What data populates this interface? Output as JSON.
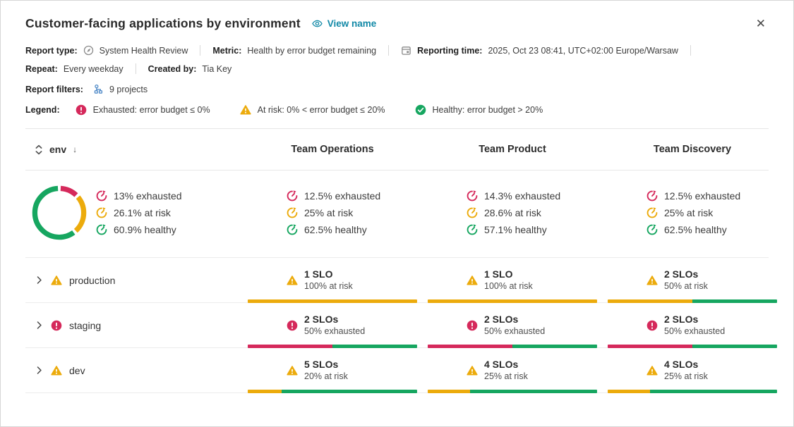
{
  "colors": {
    "exhausted": "#d5295b",
    "at_risk": "#ecab0c",
    "healthy": "#16a660",
    "link": "#1289a7",
    "projects_icon": "#4b87c6",
    "muted_icon": "#8a8a8a"
  },
  "icons": [
    "eye-icon",
    "close-icon",
    "report-type-icon",
    "calendar-icon",
    "projects-icon",
    "exhausted-icon",
    "at-risk-icon",
    "healthy-icon",
    "gauge-icon",
    "sort-icon",
    "chevron-right-icon"
  ],
  "header": {
    "title": "Customer-facing applications by environment",
    "view_name_label": "View name",
    "close_label": "✕"
  },
  "meta": {
    "report_type_label": "Report type:",
    "report_type_value": "System Health Review",
    "metric_label": "Metric:",
    "metric_value": "Health by error budget remaining",
    "reporting_time_label": "Reporting time:",
    "reporting_time_value": "2025, Oct 23 08:41, UTC+02:00 Europe/Warsaw",
    "repeat_label": "Repeat:",
    "repeat_value": "Every weekday",
    "created_by_label": "Created by:",
    "created_by_value": "Tia Key",
    "report_filters_label": "Report filters:",
    "report_filters_value": "9 projects"
  },
  "legend": {
    "label": "Legend:",
    "items": [
      {
        "status": "exhausted",
        "text": "Exhausted: error budget ≤ 0%"
      },
      {
        "status": "at_risk",
        "text": "At risk: 0% < error budget ≤ 20%"
      },
      {
        "status": "healthy",
        "text": "Healthy: error budget > 20%"
      }
    ]
  },
  "chart_data": {
    "type": "pie",
    "donut": true,
    "labels": [
      "exhausted",
      "at risk",
      "healthy"
    ],
    "values": [
      13,
      26.1,
      60.9
    ],
    "colors": [
      "#d5295b",
      "#ecab0c",
      "#16a660"
    ]
  },
  "table": {
    "env_header": "env",
    "sort_direction": "↓",
    "columns": [
      "Team Operations",
      "Team Product",
      "Team Discovery"
    ],
    "summary": {
      "overall": [
        {
          "status": "exhausted",
          "text": "13% exhausted"
        },
        {
          "status": "at_risk",
          "text": "26.1% at risk"
        },
        {
          "status": "healthy",
          "text": "60.9% healthy"
        }
      ],
      "teams": [
        [
          {
            "status": "exhausted",
            "text": "12.5% exhausted"
          },
          {
            "status": "at_risk",
            "text": "25% at risk"
          },
          {
            "status": "healthy",
            "text": "62.5% healthy"
          }
        ],
        [
          {
            "status": "exhausted",
            "text": "14.3% exhausted"
          },
          {
            "status": "at_risk",
            "text": "28.6% at risk"
          },
          {
            "status": "healthy",
            "text": "57.1% healthy"
          }
        ],
        [
          {
            "status": "exhausted",
            "text": "12.5% exhausted"
          },
          {
            "status": "at_risk",
            "text": "25% at risk"
          },
          {
            "status": "healthy",
            "text": "62.5% healthy"
          }
        ]
      ]
    },
    "rows": [
      {
        "name": "production",
        "status": "at_risk",
        "cells": [
          {
            "status": "at_risk",
            "count": "1 SLO",
            "detail": "100% at risk",
            "bar": {
              "exhausted": 0,
              "at_risk": 100,
              "healthy": 0
            }
          },
          {
            "status": "at_risk",
            "count": "1 SLO",
            "detail": "100% at risk",
            "bar": {
              "exhausted": 0,
              "at_risk": 100,
              "healthy": 0
            }
          },
          {
            "status": "at_risk",
            "count": "2 SLOs",
            "detail": "50% at risk",
            "bar": {
              "exhausted": 0,
              "at_risk": 50,
              "healthy": 50
            }
          }
        ]
      },
      {
        "name": "staging",
        "status": "exhausted",
        "cells": [
          {
            "status": "exhausted",
            "count": "2 SLOs",
            "detail": "50% exhausted",
            "bar": {
              "exhausted": 50,
              "at_risk": 0,
              "healthy": 50
            }
          },
          {
            "status": "exhausted",
            "count": "2 SLOs",
            "detail": "50% exhausted",
            "bar": {
              "exhausted": 50,
              "at_risk": 0,
              "healthy": 50
            }
          },
          {
            "status": "exhausted",
            "count": "2 SLOs",
            "detail": "50% exhausted",
            "bar": {
              "exhausted": 50,
              "at_risk": 0,
              "healthy": 50
            }
          }
        ]
      },
      {
        "name": "dev",
        "status": "at_risk",
        "cells": [
          {
            "status": "at_risk",
            "count": "5 SLOs",
            "detail": "20% at risk",
            "bar": {
              "exhausted": 0,
              "at_risk": 20,
              "healthy": 80
            }
          },
          {
            "status": "at_risk",
            "count": "4 SLOs",
            "detail": "25% at risk",
            "bar": {
              "exhausted": 0,
              "at_risk": 25,
              "healthy": 75
            }
          },
          {
            "status": "at_risk",
            "count": "4 SLOs",
            "detail": "25% at risk",
            "bar": {
              "exhausted": 0,
              "at_risk": 25,
              "healthy": 75
            }
          }
        ]
      }
    ]
  }
}
